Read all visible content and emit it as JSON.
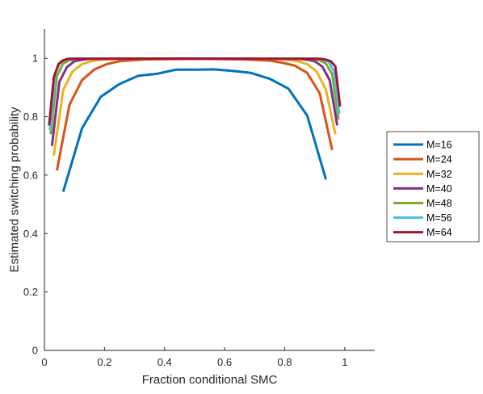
{
  "chart_data": {
    "type": "line",
    "title": "",
    "xlabel": "Fraction conditional SMC",
    "ylabel": "Estimated switching probability",
    "xlim": [
      0,
      1.1
    ],
    "ylim": [
      0,
      1.1
    ],
    "xticks": [
      0,
      0.2,
      0.4,
      0.6,
      0.8,
      1
    ],
    "yticks": [
      0,
      0.2,
      0.4,
      0.6,
      0.8,
      1
    ],
    "xtick_labels": [
      "0",
      "0.2",
      "0.4",
      "0.6",
      "0.8",
      "1"
    ],
    "ytick_labels": [
      "0",
      "0.2",
      "0.4",
      "0.6",
      "0.8",
      "1"
    ],
    "grid": false,
    "legend_position": "outside-right",
    "series": [
      {
        "name": "M=16",
        "color": "#0072BD",
        "x": [
          0.0625,
          0.125,
          0.1875,
          0.25,
          0.3125,
          0.375,
          0.4375,
          0.5,
          0.5625,
          0.625,
          0.6875,
          0.75,
          0.8125,
          0.875,
          0.9375
        ],
        "y": [
          0.543,
          0.76,
          0.868,
          0.912,
          0.94,
          0.947,
          0.961,
          0.961,
          0.962,
          0.957,
          0.95,
          0.93,
          0.896,
          0.804,
          0.585
        ]
      },
      {
        "name": "M=24",
        "color": "#D95319",
        "x": [
          0.0417,
          0.0833,
          0.125,
          0.1667,
          0.2083,
          0.25,
          0.2917,
          0.3333,
          0.5,
          0.6667,
          0.7083,
          0.75,
          0.7917,
          0.8333,
          0.875,
          0.9167,
          0.9583
        ],
        "y": [
          0.616,
          0.84,
          0.925,
          0.962,
          0.98,
          0.99,
          0.993,
          0.996,
          0.998,
          0.996,
          0.994,
          0.992,
          0.985,
          0.975,
          0.95,
          0.88,
          0.686
        ]
      },
      {
        "name": "M=32",
        "color": "#EDB120",
        "x": [
          0.0313,
          0.0625,
          0.0938,
          0.125,
          0.1563,
          0.1875,
          0.25,
          0.5,
          0.75,
          0.8125,
          0.8438,
          0.875,
          0.9063,
          0.9375,
          0.9688
        ],
        "y": [
          0.667,
          0.892,
          0.955,
          0.98,
          0.99,
          0.995,
          0.998,
          0.999,
          0.998,
          0.995,
          0.99,
          0.98,
          0.955,
          0.892,
          0.74
        ]
      },
      {
        "name": "M=40",
        "color": "#7E2F8E",
        "x": [
          0.025,
          0.05,
          0.075,
          0.1,
          0.125,
          0.15,
          0.2,
          0.5,
          0.8,
          0.85,
          0.875,
          0.9,
          0.925,
          0.95,
          0.975
        ],
        "y": [
          0.7,
          0.92,
          0.97,
          0.99,
          0.995,
          0.998,
          0.999,
          0.999,
          0.999,
          0.998,
          0.995,
          0.99,
          0.972,
          0.925,
          0.77
        ]
      },
      {
        "name": "M=48",
        "color": "#77AC30",
        "x": [
          0.0208,
          0.0417,
          0.0625,
          0.0833,
          0.1042,
          0.125,
          0.5,
          0.875,
          0.8958,
          0.9167,
          0.9375,
          0.9583,
          0.9792
        ],
        "y": [
          0.74,
          0.94,
          0.982,
          0.993,
          0.997,
          0.999,
          0.999,
          0.999,
          0.997,
          0.993,
          0.982,
          0.945,
          0.79
        ]
      },
      {
        "name": "M=56",
        "color": "#4DBEEE",
        "x": [
          0.0179,
          0.0357,
          0.0536,
          0.0714,
          0.0893,
          0.5,
          0.9107,
          0.9286,
          0.9464,
          0.9643,
          0.9821
        ],
        "y": [
          0.755,
          0.95,
          0.988,
          0.996,
          0.999,
          0.999,
          0.999,
          0.996,
          0.988,
          0.955,
          0.81
        ]
      },
      {
        "name": "M=64",
        "color": "#A2142F",
        "x": [
          0.0156,
          0.0313,
          0.0469,
          0.0625,
          0.0781,
          0.5,
          0.9219,
          0.9375,
          0.9531,
          0.9688,
          0.9844
        ],
        "y": [
          0.77,
          0.935,
          0.98,
          0.993,
          0.998,
          0.999,
          0.998,
          0.995,
          0.99,
          0.972,
          0.835
        ]
      }
    ]
  }
}
